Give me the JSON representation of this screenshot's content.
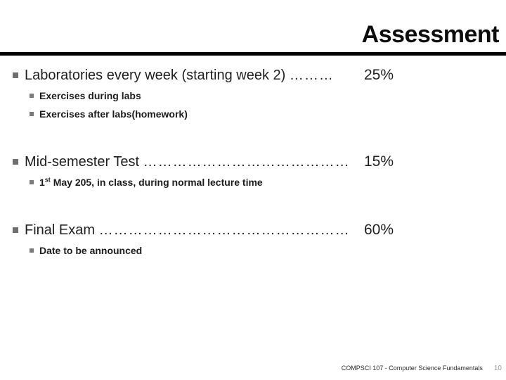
{
  "slide": {
    "title": "Assessment",
    "footer": "COMPSCI 107 - Computer Science Fundamentals",
    "page_number": "10",
    "bullet_color": "#6f6f6f",
    "rule_color": "#000000",
    "items": [
      {
        "label": "Laboratories every week (starting week 2) ",
        "dots": "………",
        "value": "25%",
        "subitems": [
          "Exercises during labs",
          "Exercises after labs(homework)"
        ]
      },
      {
        "label": "Mid-semester Test ",
        "dots": "………………………………………………..…",
        "value": "15%",
        "subitem_parts": [
          "1",
          "st",
          " May 205, in class, during normal lecture time"
        ]
      },
      {
        "label": "Final Exam ",
        "dots": "………………………………………………………….......",
        "value": "60%",
        "subitems": [
          "Date to be announced"
        ]
      }
    ]
  }
}
